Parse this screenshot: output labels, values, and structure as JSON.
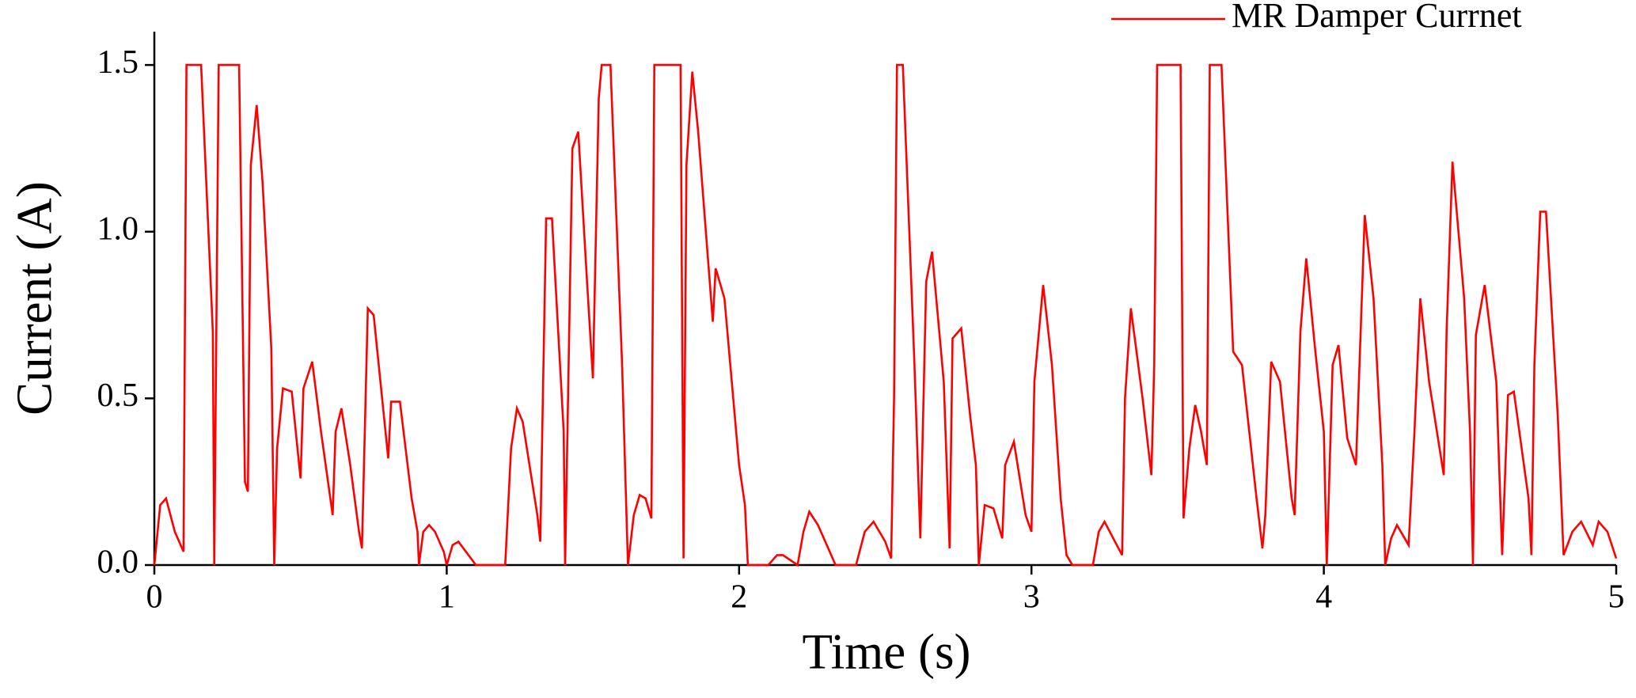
{
  "chart_data": {
    "type": "line",
    "xlabel": "Time (s)",
    "ylabel": "Current (A)",
    "x": [
      0,
      0.02,
      0.04,
      0.07,
      0.1,
      0.11,
      0.16,
      0.2,
      0.205,
      0.22,
      0.29,
      0.31,
      0.32,
      0.33,
      0.35,
      0.37,
      0.4,
      0.41,
      0.42,
      0.44,
      0.47,
      0.5,
      0.51,
      0.54,
      0.57,
      0.61,
      0.62,
      0.64,
      0.67,
      0.7,
      0.71,
      0.73,
      0.75,
      0.8,
      0.81,
      0.84,
      0.88,
      0.9,
      0.905,
      0.92,
      0.94,
      0.96,
      0.99,
      1.0,
      1.02,
      1.04,
      1.1,
      1.2,
      1.22,
      1.24,
      1.26,
      1.31,
      1.32,
      1.34,
      1.36,
      1.4,
      1.405,
      1.43,
      1.45,
      1.48,
      1.5,
      1.52,
      1.53,
      1.56,
      1.6,
      1.62,
      1.64,
      1.66,
      1.68,
      1.7,
      1.71,
      1.8,
      1.81,
      1.82,
      1.84,
      1.86,
      1.91,
      1.92,
      1.95,
      2.0,
      2.02,
      2.03,
      2.1,
      2.13,
      2.15,
      2.2,
      2.22,
      2.24,
      2.27,
      2.33,
      2.4,
      2.43,
      2.46,
      2.5,
      2.52,
      2.53,
      2.54,
      2.56,
      2.6,
      2.62,
      2.64,
      2.66,
      2.7,
      2.72,
      2.73,
      2.76,
      2.79,
      2.81,
      2.82,
      2.84,
      2.87,
      2.9,
      2.91,
      2.94,
      2.98,
      3.0,
      3.01,
      3.04,
      3.07,
      3.1,
      3.12,
      3.14,
      3.21,
      3.23,
      3.25,
      3.28,
      3.31,
      3.32,
      3.34,
      3.38,
      3.41,
      3.42,
      3.43,
      3.51,
      3.52,
      3.54,
      3.56,
      3.58,
      3.6,
      3.61,
      3.65,
      3.69,
      3.72,
      3.77,
      3.79,
      3.8,
      3.82,
      3.85,
      3.89,
      3.9,
      3.92,
      3.94,
      3.97,
      4.0,
      4.01,
      4.03,
      4.05,
      4.08,
      4.11,
      4.14,
      4.17,
      4.2,
      4.21,
      4.23,
      4.25,
      4.29,
      4.31,
      4.33,
      4.36,
      4.41,
      4.42,
      4.44,
      4.48,
      4.5,
      4.51,
      4.52,
      4.55,
      4.59,
      4.61,
      4.63,
      4.65,
      4.7,
      4.71,
      4.72,
      4.74,
      4.76,
      4.8,
      4.82,
      4.85,
      4.88,
      4.92,
      4.94,
      4.97,
      5.0
    ],
    "series": [
      {
        "name": "MR Damper Currnet",
        "color": "#ff0000",
        "values": [
          0,
          0.18,
          0.2,
          0.1,
          0.04,
          1.5,
          1.5,
          0.7,
          0,
          1.5,
          1.5,
          0.25,
          0.22,
          1.2,
          1.38,
          1.15,
          0.65,
          0,
          0.35,
          0.53,
          0.52,
          0.26,
          0.53,
          0.61,
          0.4,
          0.15,
          0.4,
          0.47,
          0.3,
          0.1,
          0.05,
          0.77,
          0.75,
          0.32,
          0.49,
          0.49,
          0.2,
          0.1,
          0,
          0.1,
          0.12,
          0.1,
          0.04,
          0,
          0.06,
          0.07,
          0,
          0,
          0.35,
          0.47,
          0.43,
          0.15,
          0.07,
          1.04,
          1.04,
          0.4,
          0,
          1.25,
          1.3,
          0.85,
          0.56,
          1.4,
          1.5,
          1.5,
          0.6,
          0,
          0.15,
          0.21,
          0.2,
          0.14,
          1.5,
          1.5,
          0.02,
          1.2,
          1.48,
          1.3,
          0.73,
          0.89,
          0.8,
          0.3,
          0.18,
          0,
          0,
          0.03,
          0.03,
          0,
          0.1,
          0.16,
          0.12,
          0,
          0,
          0.1,
          0.13,
          0.07,
          0.02,
          0.5,
          1.5,
          1.5,
          0.6,
          0.08,
          0.85,
          0.94,
          0.55,
          0.05,
          0.68,
          0.71,
          0.45,
          0.3,
          0,
          0.18,
          0.17,
          0.08,
          0.3,
          0.37,
          0.15,
          0.1,
          0.55,
          0.84,
          0.6,
          0.2,
          0.03,
          0,
          0,
          0.1,
          0.13,
          0.08,
          0.03,
          0.5,
          0.77,
          0.5,
          0.27,
          0.6,
          1.5,
          1.5,
          0.14,
          0.35,
          0.48,
          0.4,
          0.3,
          1.5,
          1.5,
          0.64,
          0.6,
          0.2,
          0.05,
          0.15,
          0.61,
          0.55,
          0.2,
          0.15,
          0.7,
          0.92,
          0.65,
          0.4,
          0,
          0.6,
          0.66,
          0.38,
          0.3,
          1.05,
          0.8,
          0.3,
          0,
          0.08,
          0.12,
          0.06,
          0.4,
          0.8,
          0.55,
          0.27,
          0.7,
          1.21,
          0.8,
          0.4,
          0,
          0.69,
          0.84,
          0.55,
          0.03,
          0.51,
          0.52,
          0.2,
          0.03,
          0.6,
          1.06,
          1.06,
          0.45,
          0.03,
          0.1,
          0.13,
          0.06,
          0.13,
          0.1,
          0.02
        ]
      }
    ],
    "xlim": [
      0,
      5
    ],
    "ylim": [
      0,
      1.6
    ],
    "xticks": [
      0,
      1,
      2,
      3,
      4,
      5
    ],
    "yticks": [
      {
        "value": 0,
        "label": "0.0"
      },
      0.5,
      {
        "value": 1,
        "label": "1.0"
      },
      1.5
    ],
    "legend": "upper right"
  }
}
